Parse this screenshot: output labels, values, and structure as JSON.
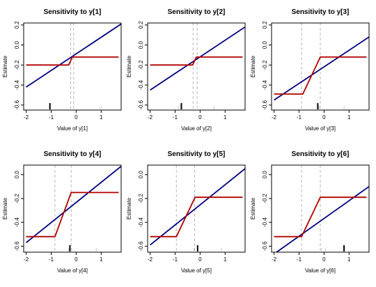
{
  "figure": {
    "cols": 3,
    "rows": 2
  },
  "chart_data": [
    {
      "type": "line",
      "title": "Sensitivity to y[1]",
      "xlabel": "Value of y[1]",
      "ylabel": "Estimate",
      "xlim": [
        -2.1,
        1.8
      ],
      "ylim": [
        -0.65,
        0.22
      ],
      "xticks": [
        -2,
        -1,
        0,
        1
      ],
      "yticks": [
        -0.6,
        -0.4,
        -0.2,
        0.0,
        0.2
      ],
      "xtick_labels": [
        "-2",
        "-1",
        "0",
        "1"
      ],
      "ytick_labels": [
        "-0.6",
        "-0.4",
        "-0.2",
        "0.0",
        "0.2"
      ],
      "series": [
        {
          "color": "#000080",
          "x": [
            -2.0,
            1.8
          ],
          "y": [
            -0.42,
            0.21
          ]
        },
        {
          "color": "#b00000",
          "x": [
            -2.0,
            -0.3,
            -0.15,
            1.7
          ],
          "y": [
            -0.2,
            -0.2,
            -0.12,
            -0.12
          ]
        }
      ],
      "vlines": [
        -0.22,
        -0.1
      ],
      "rug": [
        {
          "x": -1.05,
          "weight": "heavy"
        },
        {
          "x": 1.0,
          "weight": "light"
        }
      ]
    },
    {
      "type": "line",
      "title": "Sensitivity to y[2]",
      "xlabel": "Value of y[2]",
      "ylabel": "Estimate",
      "xlim": [
        -2.1,
        1.8
      ],
      "ylim": [
        -0.65,
        0.22
      ],
      "xticks": [
        -2,
        -1,
        0,
        1
      ],
      "yticks": [
        -0.6,
        -0.4,
        -0.2,
        0.0,
        0.2
      ],
      "xtick_labels": [
        "-2",
        "-1",
        "0",
        "1"
      ],
      "ytick_labels": [
        "-0.6",
        "-0.4",
        "-0.2",
        "0.0",
        "0.2"
      ],
      "series": [
        {
          "color": "#000080",
          "x": [
            -2.0,
            1.8
          ],
          "y": [
            -0.45,
            0.18
          ]
        },
        {
          "color": "#b00000",
          "x": [
            -2.0,
            -0.3,
            -0.15,
            1.7
          ],
          "y": [
            -0.2,
            -0.2,
            -0.12,
            -0.12
          ]
        }
      ],
      "vlines": [
        -0.28,
        -0.12
      ],
      "rug": [
        {
          "x": -0.75,
          "weight": "heavy"
        },
        {
          "x": -0.85,
          "weight": "light"
        },
        {
          "x": 0.55,
          "weight": "light"
        }
      ]
    },
    {
      "type": "line",
      "title": "Sensitivity to y[3]",
      "xlabel": "Value of y[3]",
      "ylabel": "Estimate",
      "xlim": [
        -2.1,
        1.8
      ],
      "ylim": [
        -0.65,
        0.22
      ],
      "xticks": [
        -2,
        -1,
        0,
        1
      ],
      "yticks": [
        -0.6,
        -0.4,
        -0.2,
        0.0,
        0.2
      ],
      "xtick_labels": [
        "-2",
        "-1",
        "0",
        "1"
      ],
      "ytick_labels": [
        "-0.6",
        "-0.4",
        "-0.2",
        "0.0",
        "0.2"
      ],
      "series": [
        {
          "color": "#000080",
          "x": [
            -2.0,
            1.8
          ],
          "y": [
            -0.55,
            0.08
          ]
        },
        {
          "color": "#b00000",
          "x": [
            -2.0,
            -0.85,
            -0.15,
            1.7
          ],
          "y": [
            -0.49,
            -0.49,
            -0.12,
            -0.12
          ]
        }
      ],
      "vlines": [
        -0.9,
        -0.15
      ],
      "rug": [
        {
          "x": -0.25,
          "weight": "heavy"
        },
        {
          "x": -0.2,
          "weight": "light"
        },
        {
          "x": 0.8,
          "weight": "light"
        }
      ]
    },
    {
      "type": "line",
      "title": "Sensitivity to y[4]",
      "xlabel": "Value of y[4]",
      "ylabel": "Estimate",
      "xlim": [
        -2.1,
        1.8
      ],
      "ylim": [
        -0.65,
        0.08
      ],
      "xticks": [
        -2,
        -1,
        0,
        1
      ],
      "yticks": [
        -0.6,
        -0.4,
        -0.2,
        0.0
      ],
      "xtick_labels": [
        "-2",
        "-1",
        "0",
        "1"
      ],
      "ytick_labels": [
        "-0.6",
        "-0.4",
        "-0.2",
        "0.0"
      ],
      "series": [
        {
          "color": "#000080",
          "x": [
            -2.0,
            1.8
          ],
          "y": [
            -0.57,
            0.07
          ]
        },
        {
          "color": "#b00000",
          "x": [
            -2.0,
            -0.85,
            -0.2,
            1.7
          ],
          "y": [
            -0.52,
            -0.52,
            -0.15,
            -0.15
          ]
        }
      ],
      "vlines": [
        -0.85,
        -0.2
      ],
      "rug": [
        {
          "x": -0.25,
          "weight": "heavy"
        },
        {
          "x": -0.3,
          "weight": "light"
        },
        {
          "x": 0.8,
          "weight": "light"
        }
      ]
    },
    {
      "type": "line",
      "title": "Sensitivity to y[5]",
      "xlabel": "Value of y[5]",
      "ylabel": "Estimate",
      "xlim": [
        -2.1,
        1.8
      ],
      "ylim": [
        -0.65,
        0.08
      ],
      "xticks": [
        -2,
        -1,
        0,
        1
      ],
      "yticks": [
        -0.6,
        -0.4,
        -0.2,
        0.0
      ],
      "xtick_labels": [
        "-2",
        "-1",
        "0",
        "1"
      ],
      "ytick_labels": [
        "-0.6",
        "-0.4",
        "-0.2",
        "0.0"
      ],
      "series": [
        {
          "color": "#000080",
          "x": [
            -2.0,
            1.8
          ],
          "y": [
            -0.59,
            0.05
          ]
        },
        {
          "color": "#b00000",
          "x": [
            -2.0,
            -0.95,
            -0.2,
            1.7
          ],
          "y": [
            -0.52,
            -0.52,
            -0.19,
            -0.19
          ]
        }
      ],
      "vlines": [
        -0.95,
        -0.22
      ],
      "rug": [
        {
          "x": -0.1,
          "weight": "heavy"
        },
        {
          "x": -0.25,
          "weight": "light"
        },
        {
          "x": 0.85,
          "weight": "light"
        }
      ]
    },
    {
      "type": "line",
      "title": "Sensitivity to y[6]",
      "xlabel": "Value of y[6]",
      "ylabel": "Estimate",
      "xlim": [
        -2.1,
        1.8
      ],
      "ylim": [
        -0.65,
        0.08
      ],
      "xticks": [
        -2,
        -1,
        0,
        1
      ],
      "yticks": [
        -0.6,
        -0.4,
        -0.2,
        0.0
      ],
      "xtick_labels": [
        "-2",
        "-1",
        "0",
        "1"
      ],
      "ytick_labels": [
        "-0.6",
        "-0.4",
        "-0.2",
        "0.0"
      ],
      "series": [
        {
          "color": "#000080",
          "x": [
            -1.9,
            1.8
          ],
          "y": [
            -0.65,
            -0.1
          ]
        },
        {
          "color": "#b00000",
          "x": [
            -2.0,
            -0.9,
            -0.15,
            1.7
          ],
          "y": [
            -0.52,
            -0.52,
            -0.19,
            -0.19
          ]
        }
      ],
      "vlines": [
        -0.9,
        -0.15
      ],
      "rug": [
        {
          "x": 0.8,
          "weight": "heavy"
        },
        {
          "x": -0.1,
          "weight": "light"
        },
        {
          "x": 0.05,
          "weight": "light"
        }
      ]
    }
  ]
}
